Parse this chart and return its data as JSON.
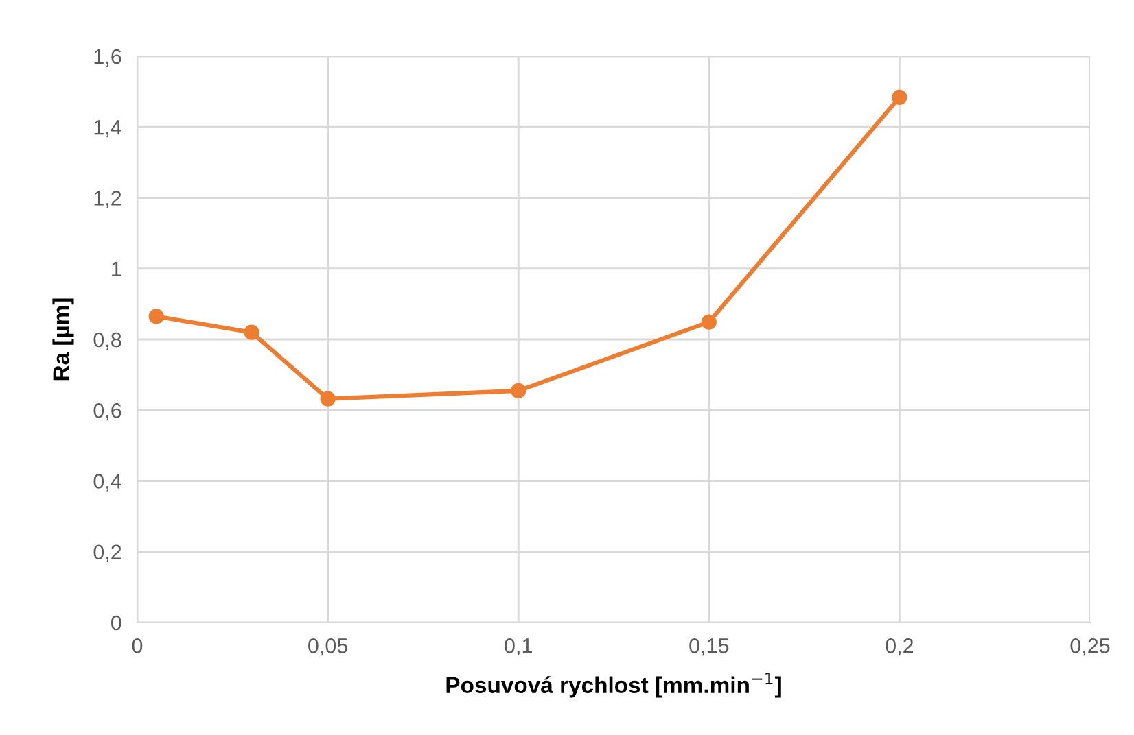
{
  "chart_data": {
    "type": "line",
    "xlabel": "Posuvová rychlost [mm.min$^{−1}$]",
    "ylabel": "Ra [µm]",
    "x": [
      0.005,
      0.03,
      0.05,
      0.1,
      0.15,
      0.2
    ],
    "series": [
      {
        "color": "#ed7d31",
        "values": [
          0.865,
          0.82,
          0.632,
          0.655,
          0.849,
          1.484
        ]
      }
    ],
    "xlim": [
      0,
      0.25
    ],
    "xticks": [
      0,
      {
        "value": 0.05,
        "label": "0,05"
      },
      {
        "value": 0.1,
        "label": "0,1"
      },
      {
        "value": 0.15,
        "label": "0,15"
      },
      {
        "value": 0.2,
        "label": "0,2"
      },
      {
        "value": 0.25,
        "label": "0,25"
      }
    ],
    "ylim": [
      0,
      1.6
    ],
    "yticks": [
      0,
      {
        "value": 0.2,
        "label": "0,2"
      },
      {
        "value": 0.4,
        "label": "0,4"
      },
      {
        "value": 0.6,
        "label": "0,6"
      },
      {
        "value": 0.8,
        "label": "0,8"
      },
      1,
      {
        "value": 1.2,
        "label": "1,2"
      },
      {
        "value": 1.4,
        "label": "1,4"
      },
      {
        "value": 1.6,
        "label": "1,6"
      }
    ],
    "grid": true,
    "marker": "circle",
    "line_style": "solid"
  }
}
